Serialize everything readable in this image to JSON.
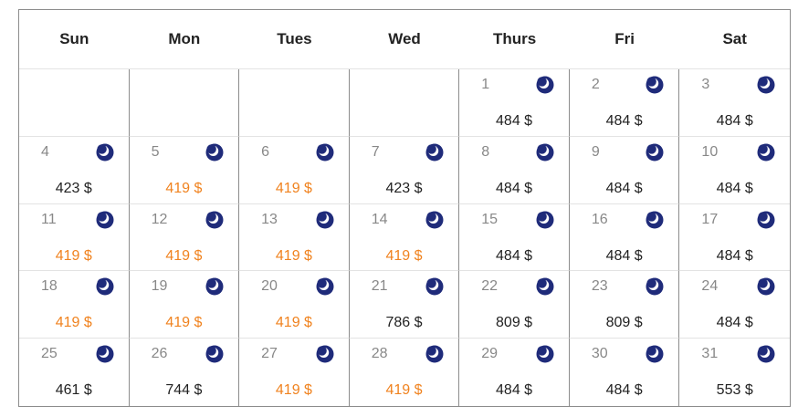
{
  "colors": {
    "low_price": "#f0821e",
    "normal_price": "#222222",
    "moon_icon": "#1f2b7a"
  },
  "weekdays": [
    "Sun",
    "Mon",
    "Tues",
    "Wed",
    "Thurs",
    "Fri",
    "Sat"
  ],
  "weeks": [
    [
      null,
      null,
      null,
      null,
      {
        "day": "1",
        "price": "484 $",
        "low": false,
        "icon": "moon-icon"
      },
      {
        "day": "2",
        "price": "484 $",
        "low": false,
        "icon": "moon-icon"
      },
      {
        "day": "3",
        "price": "484 $",
        "low": false,
        "icon": "moon-icon"
      }
    ],
    [
      {
        "day": "4",
        "price": "423 $",
        "low": false,
        "icon": "moon-icon"
      },
      {
        "day": "5",
        "price": "419 $",
        "low": true,
        "icon": "moon-icon"
      },
      {
        "day": "6",
        "price": "419 $",
        "low": true,
        "icon": "moon-icon"
      },
      {
        "day": "7",
        "price": "423 $",
        "low": false,
        "icon": "moon-icon"
      },
      {
        "day": "8",
        "price": "484 $",
        "low": false,
        "icon": "moon-icon"
      },
      {
        "day": "9",
        "price": "484 $",
        "low": false,
        "icon": "moon-icon"
      },
      {
        "day": "10",
        "price": "484 $",
        "low": false,
        "icon": "moon-icon"
      }
    ],
    [
      {
        "day": "11",
        "price": "419 $",
        "low": true,
        "icon": "moon-icon"
      },
      {
        "day": "12",
        "price": "419 $",
        "low": true,
        "icon": "moon-icon"
      },
      {
        "day": "13",
        "price": "419 $",
        "low": true,
        "icon": "moon-icon"
      },
      {
        "day": "14",
        "price": "419 $",
        "low": true,
        "icon": "moon-icon"
      },
      {
        "day": "15",
        "price": "484 $",
        "low": false,
        "icon": "moon-icon"
      },
      {
        "day": "16",
        "price": "484 $",
        "low": false,
        "icon": "moon-icon"
      },
      {
        "day": "17",
        "price": "484 $",
        "low": false,
        "icon": "moon-icon"
      }
    ],
    [
      {
        "day": "18",
        "price": "419 $",
        "low": true,
        "icon": "moon-icon"
      },
      {
        "day": "19",
        "price": "419 $",
        "low": true,
        "icon": "moon-icon"
      },
      {
        "day": "20",
        "price": "419 $",
        "low": true,
        "icon": "moon-icon"
      },
      {
        "day": "21",
        "price": "786 $",
        "low": false,
        "icon": "moon-icon"
      },
      {
        "day": "22",
        "price": "809 $",
        "low": false,
        "icon": "moon-icon"
      },
      {
        "day": "23",
        "price": "809 $",
        "low": false,
        "icon": "moon-icon"
      },
      {
        "day": "24",
        "price": "484 $",
        "low": false,
        "icon": "moon-icon"
      }
    ],
    [
      {
        "day": "25",
        "price": "461 $",
        "low": false,
        "icon": "moon-icon"
      },
      {
        "day": "26",
        "price": "744 $",
        "low": false,
        "icon": "moon-icon"
      },
      {
        "day": "27",
        "price": "419 $",
        "low": true,
        "icon": "moon-icon"
      },
      {
        "day": "28",
        "price": "419 $",
        "low": true,
        "icon": "moon-icon"
      },
      {
        "day": "29",
        "price": "484 $",
        "low": false,
        "icon": "moon-icon"
      },
      {
        "day": "30",
        "price": "484 $",
        "low": false,
        "icon": "moon-icon"
      },
      {
        "day": "31",
        "price": "553 $",
        "low": false,
        "icon": "moon-icon"
      }
    ]
  ]
}
